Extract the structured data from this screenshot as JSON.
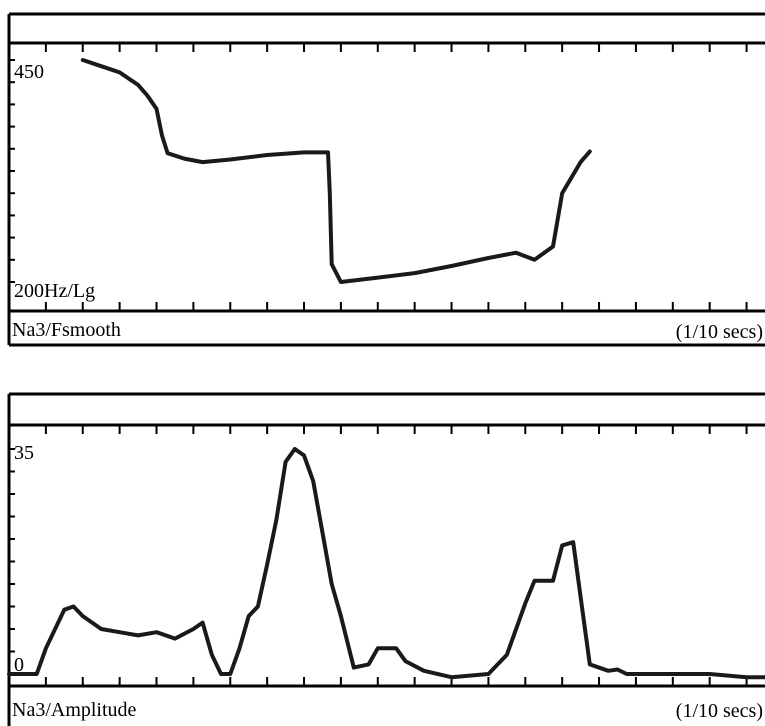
{
  "panels": {
    "top": {
      "scale_max_label": "450",
      "scale_min_label": "200Hz/Lg",
      "track_label": "Na3/Fsmooth",
      "units_label": "(1/10 secs)"
    },
    "bottom": {
      "scale_max_label": "35",
      "scale_min_label": "0",
      "track_label": "Na3/Amplitude",
      "units_label": "(1/10 secs)"
    }
  },
  "colors": {
    "line": "#1a1a1a",
    "frame": "#000000",
    "background": "#ffffff"
  },
  "chart_data": [
    {
      "type": "line",
      "title": "",
      "xlabel": "(1/10 secs)",
      "ylabel": "200Hz/Lg",
      "xlim": [
        0,
        41
      ],
      "ylim": [
        200,
        450
      ],
      "grid": false,
      "series": [
        {
          "name": "Na3/Fsmooth",
          "points": [
            [
              4.0,
              450
            ],
            [
              5.0,
              443
            ],
            [
              6.0,
              436
            ],
            [
              7.0,
              422
            ],
            [
              7.5,
              410
            ],
            [
              8.0,
              395
            ],
            [
              8.3,
              365
            ],
            [
              8.6,
              345
            ],
            [
              9.5,
              339
            ],
            [
              10.5,
              335
            ],
            [
              12.0,
              338
            ],
            [
              14.0,
              343
            ],
            [
              16.0,
              346
            ],
            [
              17.3,
              346
            ],
            [
              17.4,
              300
            ],
            [
              17.5,
              220
            ],
            [
              18.0,
              200
            ],
            [
              20.0,
              205
            ],
            [
              22.0,
              210
            ],
            [
              24.0,
              218
            ],
            [
              26.0,
              227
            ],
            [
              27.5,
              233
            ],
            [
              28.5,
              225
            ],
            [
              29.5,
              240
            ],
            [
              30.0,
              300
            ],
            [
              31.0,
              335
            ],
            [
              31.5,
              347
            ]
          ]
        }
      ]
    },
    {
      "type": "line",
      "title": "",
      "xlabel": "(1/10 secs)",
      "ylabel": "",
      "xlim": [
        0,
        41
      ],
      "ylim": [
        0,
        35
      ],
      "grid": false,
      "series": [
        {
          "name": "Na3/Amplitude",
          "points": [
            [
              0.0,
              0
            ],
            [
              1.5,
              0
            ],
            [
              2.0,
              4
            ],
            [
              3.0,
              10
            ],
            [
              3.5,
              10.5
            ],
            [
              4.0,
              9
            ],
            [
              5.0,
              7
            ],
            [
              6.0,
              6.5
            ],
            [
              7.0,
              6
            ],
            [
              8.0,
              6.5
            ],
            [
              9.0,
              5.5
            ],
            [
              10.0,
              7
            ],
            [
              10.5,
              8
            ],
            [
              11.0,
              3
            ],
            [
              11.5,
              0
            ],
            [
              12.0,
              0
            ],
            [
              12.5,
              4
            ],
            [
              13.0,
              9
            ],
            [
              13.5,
              10.5
            ],
            [
              14.0,
              17
            ],
            [
              14.5,
              24
            ],
            [
              15.0,
              33
            ],
            [
              15.5,
              35
            ],
            [
              16.0,
              34
            ],
            [
              16.5,
              30
            ],
            [
              17.0,
              22
            ],
            [
              17.5,
              14
            ],
            [
              18.0,
              9
            ],
            [
              18.7,
              1
            ],
            [
              19.5,
              1.5
            ],
            [
              20.0,
              4
            ],
            [
              21.0,
              4
            ],
            [
              21.5,
              2
            ],
            [
              22.5,
              0.5
            ],
            [
              24.0,
              -0.5
            ],
            [
              26.0,
              0
            ],
            [
              27.0,
              3
            ],
            [
              28.0,
              11
            ],
            [
              28.5,
              14.5
            ],
            [
              29.5,
              14.5
            ],
            [
              30.0,
              20
            ],
            [
              30.6,
              20.5
            ],
            [
              31.0,
              12
            ],
            [
              31.5,
              1.5
            ],
            [
              32.5,
              0.5
            ],
            [
              33.0,
              0.7
            ],
            [
              33.5,
              0
            ],
            [
              35.0,
              0
            ],
            [
              38.0,
              0
            ],
            [
              40.0,
              -0.5
            ],
            [
              41.0,
              -0.5
            ]
          ]
        }
      ]
    }
  ]
}
